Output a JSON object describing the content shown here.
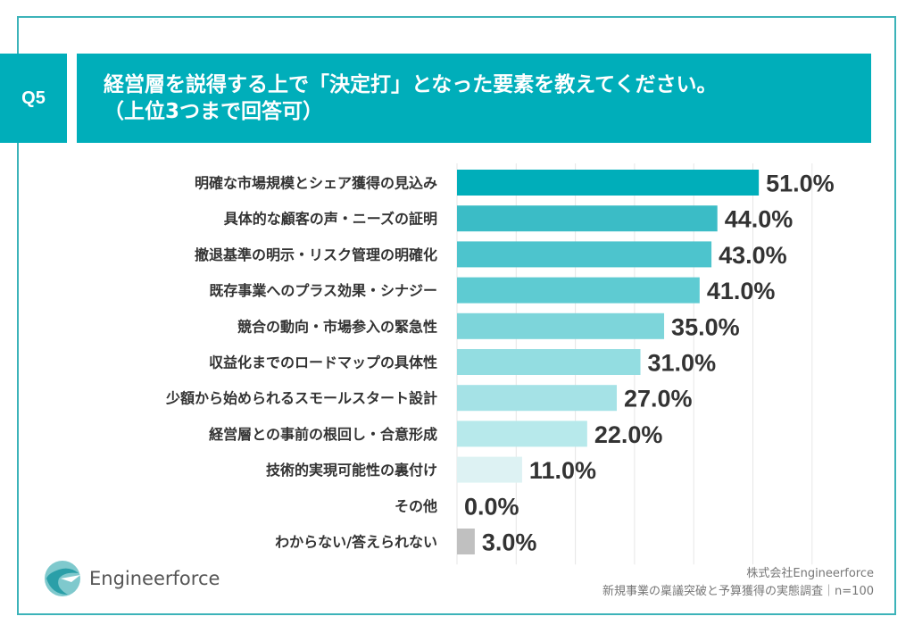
{
  "header": {
    "question_no": "Q5",
    "title_line1": "経営層を説得する上で「決定打」となった要素を教えてください。",
    "title_line2": "（上位3つまで回答可）"
  },
  "footer": {
    "logo_text": "Engineerforce",
    "company": "株式会社Engineerforce",
    "survey": "新規事業の稟議突破と予算獲得の実態調査｜n=100"
  },
  "colors": {
    "accent": "#00aeba",
    "frame": "#3cb3b9",
    "other_bar": "#c0c0c0"
  },
  "chart_data": {
    "type": "bar",
    "orientation": "horizontal",
    "categories": [
      "明確な市場規模とシェア獲得の見込み",
      "具体的な顧客の声・ニーズの証明",
      "撤退基準の明示・リスク管理の明確化",
      "既存事業へのプラス効果・シナジー",
      "競合の動向・市場参入の緊急性",
      "収益化までのロードマップの具体性",
      "少額から始められるスモールスタート設計",
      "経営層との事前の根回し・合意形成",
      "技術的実現可能性の裏付け",
      "その他",
      "わからない/答えられない"
    ],
    "values": [
      51.0,
      44.0,
      43.0,
      41.0,
      35.0,
      31.0,
      27.0,
      22.0,
      11.0,
      0.0,
      3.0
    ],
    "labels": [
      "51.0%",
      "44.0%",
      "43.0%",
      "41.0%",
      "35.0%",
      "31.0%",
      "27.0%",
      "22.0%",
      "11.0%",
      "0.0%",
      "3.0%"
    ],
    "bar_colors": [
      "#00aeba",
      "#3bbcc6",
      "#4dc4cd",
      "#5ecbd2",
      "#7dd5da",
      "#93dde1",
      "#a5e2e6",
      "#b7e9eb",
      "#ddf2f3",
      "#e6f5f6",
      "#c0c0c0"
    ],
    "xlim": [
      0,
      60
    ],
    "grid": true,
    "unit": "%"
  }
}
